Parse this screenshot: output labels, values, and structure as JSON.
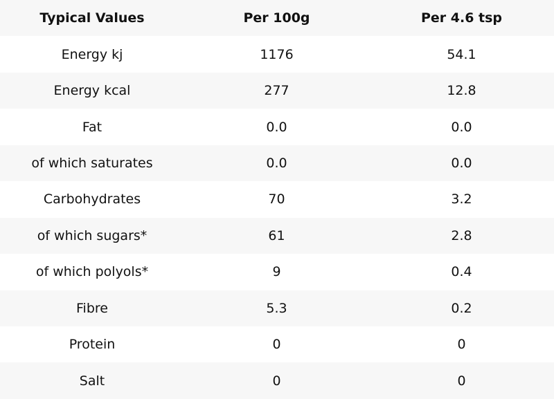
{
  "table": {
    "headers": [
      "Typical Values",
      "Per 100g",
      "Per 4.6 tsp"
    ],
    "rows": [
      [
        "Energy kj",
        "1176",
        "54.1"
      ],
      [
        "Energy kcal",
        "277",
        "12.8"
      ],
      [
        "Fat",
        "0.0",
        "0.0"
      ],
      [
        "of which saturates",
        "0.0",
        "0.0"
      ],
      [
        "Carbohydrates",
        "70",
        "3.2"
      ],
      [
        "of which sugars*",
        "61",
        "2.8"
      ],
      [
        "of which polyols*",
        "9",
        "0.4"
      ],
      [
        "Fibre",
        "5.3",
        "0.2"
      ],
      [
        "Protein",
        "0",
        "0"
      ],
      [
        "Salt",
        "0",
        "0"
      ]
    ]
  }
}
